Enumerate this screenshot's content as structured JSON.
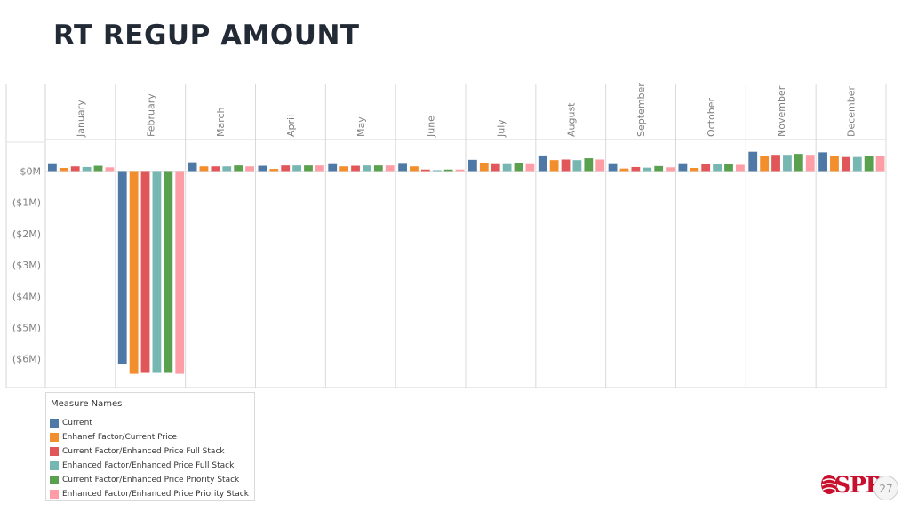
{
  "slide": {
    "title": "RT REGUP AMOUNT",
    "page_number": "27",
    "logo_text": "SPP",
    "logo_color": "#c8102e"
  },
  "chart_data": {
    "type": "bar",
    "categories": [
      "January",
      "February",
      "March",
      "April",
      "May",
      "June",
      "July",
      "August",
      "September",
      "October",
      "November",
      "December"
    ],
    "ylim": [
      -6.6,
      0.5
    ],
    "yticks": [
      0,
      -1,
      -2,
      -3,
      -4,
      -5,
      -6
    ],
    "ytick_labels": [
      "$0M",
      "($1M)",
      "($2M)",
      "($3M)",
      "($4M)",
      "($5M)",
      "($6M)"
    ],
    "ylabel": "",
    "xlabel": "",
    "grid": true,
    "legend_position": "bottom-left",
    "legend_title": "Measure Names",
    "series": [
      {
        "name": "Current",
        "color": "#4e79a7",
        "values": [
          0.25,
          -6.18,
          0.28,
          0.17,
          0.25,
          0.26,
          0.36,
          0.5,
          0.25,
          0.25,
          0.62,
          0.6
        ]
      },
      {
        "name": "Enhanef Factor/Current Price",
        "color": "#f28e2b",
        "values": [
          0.1,
          -6.48,
          0.15,
          0.07,
          0.15,
          0.15,
          0.27,
          0.35,
          0.08,
          0.1,
          0.48,
          0.48
        ]
      },
      {
        "name": "Current Factor/Enhanced Price Full Stack",
        "color": "#e15759",
        "values": [
          0.15,
          -6.45,
          0.15,
          0.18,
          0.17,
          0.05,
          0.25,
          0.37,
          0.13,
          0.23,
          0.52,
          0.45
        ]
      },
      {
        "name": "Enhanced Factor/Enhanced Price Full Stack",
        "color": "#76b7b2",
        "values": [
          0.13,
          -6.45,
          0.15,
          0.18,
          0.18,
          0.03,
          0.25,
          0.35,
          0.11,
          0.22,
          0.52,
          0.45
        ]
      },
      {
        "name": "Current Factor/Enhanced Price Priority Stack",
        "color": "#59a14f",
        "values": [
          0.17,
          -6.45,
          0.18,
          0.18,
          0.18,
          0.05,
          0.27,
          0.41,
          0.16,
          0.22,
          0.55,
          0.47
        ]
      },
      {
        "name": "Enhanced Factor/Enhanced Price Priority Stack",
        "color": "#ff9da7",
        "values": [
          0.12,
          -6.48,
          0.15,
          0.18,
          0.18,
          0.05,
          0.25,
          0.37,
          0.12,
          0.2,
          0.52,
          0.47
        ]
      }
    ]
  }
}
